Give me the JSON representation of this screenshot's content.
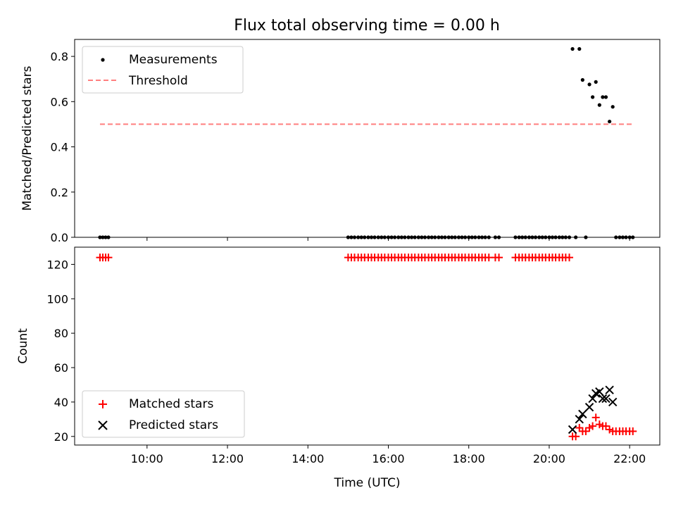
{
  "chart_data": [
    {
      "type": "scatter",
      "title": "Flux total observing time = 0.00 h",
      "xlabel": "",
      "ylabel": "Matched/Predicted stars",
      "xlim": [
        8.2,
        22.75
      ],
      "ylim": [
        0,
        0.875
      ],
      "yticks": [
        0.0,
        0.2,
        0.4,
        0.6,
        0.8
      ],
      "ytick_labels": [
        "0.0",
        "0.2",
        "0.4",
        "0.6",
        "0.8"
      ],
      "xticks": [
        10,
        12,
        14,
        16,
        18,
        20,
        22
      ],
      "grid": false,
      "legend": "upper-left",
      "series": [
        {
          "name": "Measurements",
          "marker": "dot",
          "color": "#000000",
          "points": [
            [
              8.83,
              0
            ],
            [
              8.9,
              0
            ],
            [
              8.97,
              0
            ],
            [
              9.04,
              0
            ],
            [
              15.0,
              0
            ],
            [
              15.08,
              0
            ],
            [
              15.16,
              0
            ],
            [
              15.25,
              0
            ],
            [
              15.33,
              0
            ],
            [
              15.41,
              0
            ],
            [
              15.5,
              0
            ],
            [
              15.58,
              0
            ],
            [
              15.66,
              0
            ],
            [
              15.75,
              0
            ],
            [
              15.83,
              0
            ],
            [
              15.91,
              0
            ],
            [
              16.0,
              0
            ],
            [
              16.08,
              0
            ],
            [
              16.16,
              0
            ],
            [
              16.25,
              0
            ],
            [
              16.33,
              0
            ],
            [
              16.41,
              0
            ],
            [
              16.5,
              0
            ],
            [
              16.58,
              0
            ],
            [
              16.66,
              0
            ],
            [
              16.75,
              0
            ],
            [
              16.83,
              0
            ],
            [
              16.91,
              0
            ],
            [
              17.0,
              0
            ],
            [
              17.08,
              0
            ],
            [
              17.16,
              0
            ],
            [
              17.25,
              0
            ],
            [
              17.33,
              0
            ],
            [
              17.41,
              0
            ],
            [
              17.5,
              0
            ],
            [
              17.58,
              0
            ],
            [
              17.66,
              0
            ],
            [
              17.75,
              0
            ],
            [
              17.83,
              0
            ],
            [
              17.91,
              0
            ],
            [
              18.0,
              0
            ],
            [
              18.08,
              0
            ],
            [
              18.16,
              0
            ],
            [
              18.25,
              0
            ],
            [
              18.33,
              0
            ],
            [
              18.41,
              0
            ],
            [
              18.5,
              0
            ],
            [
              18.66,
              0
            ],
            [
              18.75,
              0
            ],
            [
              19.16,
              0
            ],
            [
              19.25,
              0
            ],
            [
              19.33,
              0
            ],
            [
              19.41,
              0
            ],
            [
              19.5,
              0
            ],
            [
              19.58,
              0
            ],
            [
              19.66,
              0
            ],
            [
              19.75,
              0
            ],
            [
              19.83,
              0
            ],
            [
              19.91,
              0
            ],
            [
              20.0,
              0
            ],
            [
              20.08,
              0
            ],
            [
              20.16,
              0
            ],
            [
              20.25,
              0
            ],
            [
              20.33,
              0
            ],
            [
              20.41,
              0
            ],
            [
              20.5,
              0
            ],
            [
              20.58,
              0.833
            ],
            [
              20.66,
              0
            ],
            [
              20.75,
              0.833
            ],
            [
              20.83,
              0.696
            ],
            [
              20.91,
              0
            ],
            [
              21.0,
              0.676
            ],
            [
              21.08,
              0.62
            ],
            [
              21.16,
              0.687
            ],
            [
              21.25,
              0.585
            ],
            [
              21.33,
              0.62
            ],
            [
              21.41,
              0.62
            ],
            [
              21.5,
              0.512
            ],
            [
              21.58,
              0.577
            ],
            [
              21.66,
              0
            ],
            [
              21.75,
              0
            ],
            [
              21.83,
              0
            ],
            [
              21.91,
              0
            ],
            [
              22.0,
              0
            ],
            [
              22.08,
              0
            ]
          ]
        },
        {
          "name": "Threshold",
          "marker": "dashed-line",
          "color": "#ff7f7f",
          "points": [
            [
              8.83,
              0.5
            ],
            [
              22.08,
              0.5
            ]
          ]
        }
      ]
    },
    {
      "type": "scatter",
      "title": "",
      "xlabel": "Time (UTC)",
      "ylabel": "Count",
      "xlim": [
        8.2,
        22.75
      ],
      "ylim": [
        15,
        130
      ],
      "yticks": [
        20,
        40,
        60,
        80,
        100,
        120
      ],
      "ytick_labels": [
        "20",
        "40",
        "60",
        "80",
        "100",
        "120"
      ],
      "xticks": [
        10,
        12,
        14,
        16,
        18,
        20,
        22
      ],
      "xtick_labels": [
        "10:00",
        "12:00",
        "14:00",
        "16:00",
        "18:00",
        "20:00",
        "22:00"
      ],
      "grid": false,
      "legend": "lower-left",
      "series": [
        {
          "name": "Matched stars",
          "marker": "plus",
          "color": "#ff0000",
          "points": [
            [
              8.83,
              124
            ],
            [
              8.9,
              124
            ],
            [
              8.97,
              124
            ],
            [
              9.04,
              124
            ],
            [
              15.0,
              124
            ],
            [
              15.08,
              124
            ],
            [
              15.16,
              124
            ],
            [
              15.25,
              124
            ],
            [
              15.33,
              124
            ],
            [
              15.41,
              124
            ],
            [
              15.5,
              124
            ],
            [
              15.58,
              124
            ],
            [
              15.66,
              124
            ],
            [
              15.75,
              124
            ],
            [
              15.83,
              124
            ],
            [
              15.91,
              124
            ],
            [
              16.0,
              124
            ],
            [
              16.08,
              124
            ],
            [
              16.16,
              124
            ],
            [
              16.25,
              124
            ],
            [
              16.33,
              124
            ],
            [
              16.41,
              124
            ],
            [
              16.5,
              124
            ],
            [
              16.58,
              124
            ],
            [
              16.66,
              124
            ],
            [
              16.75,
              124
            ],
            [
              16.83,
              124
            ],
            [
              16.91,
              124
            ],
            [
              17.0,
              124
            ],
            [
              17.08,
              124
            ],
            [
              17.16,
              124
            ],
            [
              17.25,
              124
            ],
            [
              17.33,
              124
            ],
            [
              17.41,
              124
            ],
            [
              17.5,
              124
            ],
            [
              17.58,
              124
            ],
            [
              17.66,
              124
            ],
            [
              17.75,
              124
            ],
            [
              17.83,
              124
            ],
            [
              17.91,
              124
            ],
            [
              18.0,
              124
            ],
            [
              18.08,
              124
            ],
            [
              18.16,
              124
            ],
            [
              18.25,
              124
            ],
            [
              18.33,
              124
            ],
            [
              18.41,
              124
            ],
            [
              18.5,
              124
            ],
            [
              18.66,
              124
            ],
            [
              18.75,
              124
            ],
            [
              19.16,
              124
            ],
            [
              19.25,
              124
            ],
            [
              19.33,
              124
            ],
            [
              19.41,
              124
            ],
            [
              19.5,
              124
            ],
            [
              19.58,
              124
            ],
            [
              19.66,
              124
            ],
            [
              19.75,
              124
            ],
            [
              19.83,
              124
            ],
            [
              19.91,
              124
            ],
            [
              20.0,
              124
            ],
            [
              20.08,
              124
            ],
            [
              20.16,
              124
            ],
            [
              20.25,
              124
            ],
            [
              20.33,
              124
            ],
            [
              20.41,
              124
            ],
            [
              20.5,
              124
            ],
            [
              20.58,
              20
            ],
            [
              20.66,
              20
            ],
            [
              20.75,
              25
            ],
            [
              20.83,
              23
            ],
            [
              20.91,
              23
            ],
            [
              21.0,
              25
            ],
            [
              21.08,
              26
            ],
            [
              21.16,
              31
            ],
            [
              21.25,
              27
            ],
            [
              21.33,
              26
            ],
            [
              21.41,
              26
            ],
            [
              21.5,
              24
            ],
            [
              21.58,
              23
            ],
            [
              21.66,
              23
            ],
            [
              21.75,
              23
            ],
            [
              21.83,
              23
            ],
            [
              21.91,
              23
            ],
            [
              22.0,
              23
            ],
            [
              22.08,
              23
            ]
          ]
        },
        {
          "name": "Predicted stars",
          "marker": "x",
          "color": "#000000",
          "points": [
            [
              20.58,
              24
            ],
            [
              20.75,
              30
            ],
            [
              20.83,
              33
            ],
            [
              21.0,
              37
            ],
            [
              21.08,
              42
            ],
            [
              21.16,
              45
            ],
            [
              21.25,
              46
            ],
            [
              21.33,
              42
            ],
            [
              21.41,
              42
            ],
            [
              21.5,
              47
            ],
            [
              21.58,
              40
            ]
          ]
        }
      ]
    }
  ]
}
